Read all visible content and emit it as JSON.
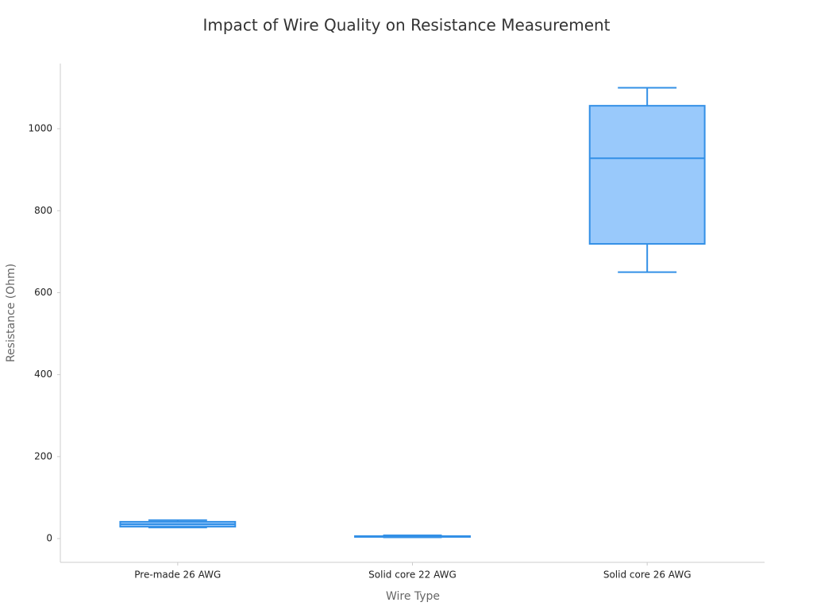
{
  "chart_data": {
    "type": "box",
    "title": "Impact of Wire Quality on Resistance Measurement",
    "x_label": "Wire Type",
    "y_label": "Resistance (Ohm)",
    "categories": [
      "Pre-made 26 AWG",
      "Solid core 22 AWG",
      "Solid core 26 AWG"
    ],
    "min": [
      27,
      3,
      650
    ],
    "q1": [
      29,
      4,
      719
    ],
    "median": [
      35,
      5,
      928
    ],
    "q3": [
      41,
      6,
      1056
    ],
    "max": [
      45,
      8,
      1100
    ],
    "fill_color": "#99c9fb",
    "line_color": "#3390e6",
    "ylim": [
      -58,
      1159
    ],
    "yticks": [
      0,
      200,
      400,
      600,
      800,
      1000
    ],
    "grid": false
  }
}
